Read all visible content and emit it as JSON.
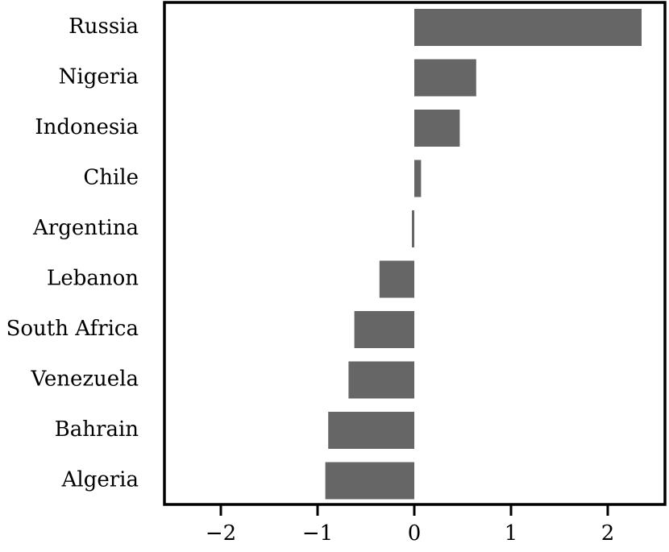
{
  "chart_data": {
    "type": "bar",
    "orientation": "horizontal",
    "categories": [
      "Russia",
      "Nigeria",
      "Indonesia",
      "Chile",
      "Argentina",
      "Lebanon",
      "South Africa",
      "Venezuela",
      "Bahrain",
      "Algeria"
    ],
    "values": [
      2.35,
      0.64,
      0.47,
      0.07,
      -0.02,
      -0.36,
      -0.62,
      -0.68,
      -0.89,
      -0.92
    ],
    "xticks": [
      -2,
      -1,
      0,
      1,
      2
    ],
    "xtick_labels": [
      "−2",
      "−1",
      "0",
      "1",
      "2"
    ],
    "xlim": [
      -2.6,
      2.6
    ],
    "title": "",
    "xlabel": "",
    "ylabel": "",
    "bar_color": "#666666",
    "grid": false,
    "legend": "none"
  }
}
